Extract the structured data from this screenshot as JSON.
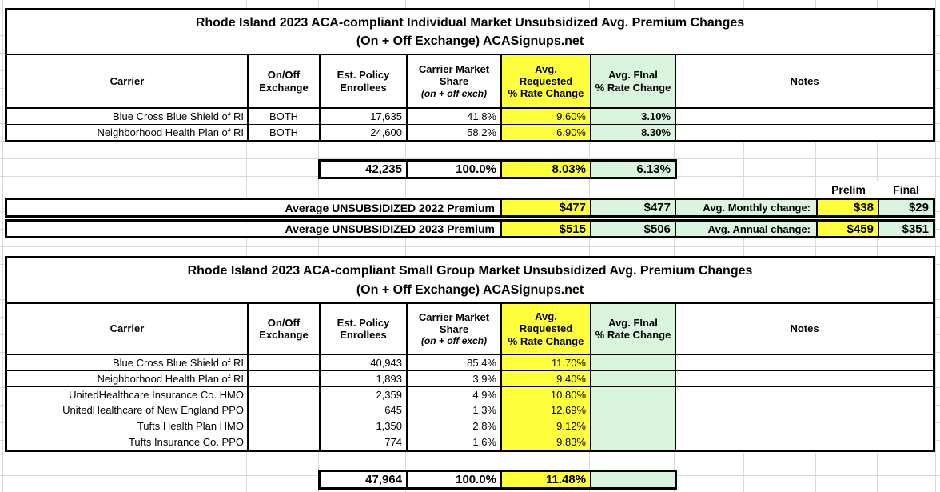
{
  "colors": {
    "highlight_yellow": "#ffff3d",
    "highlight_green": "#d9f5de",
    "gridline": "#d9d9d9",
    "border": "#000000"
  },
  "table1": {
    "title_line1": "Rhode Island 2023 ACA-compliant Individual Market Unsubsidized Avg. Premium Changes",
    "title_line2": "(On + Off Exchange) ACASignups.net",
    "headers": {
      "carrier": "Carrier",
      "exchange": "On/Off\nExchange",
      "enrollees": "Est. Policy\nEnrollees",
      "share": "Carrier Market\nShare",
      "share_sub": "(on + off exch)",
      "requested": "Avg.\nRequested\n% Rate Change",
      "final": "Avg. FInal\n% Rate Change",
      "notes": "Notes"
    },
    "rows": [
      {
        "carrier": "Blue Cross Blue Shield of RI",
        "exchange": "BOTH",
        "enrollees": "17,635",
        "share": "41.8%",
        "requested": "9.60%",
        "final": "3.10%",
        "notes": ""
      },
      {
        "carrier": "Neighborhood Health Plan of RI",
        "exchange": "BOTH",
        "enrollees": "24,600",
        "share": "58.2%",
        "requested": "6.90%",
        "final": "8.30%",
        "notes": ""
      }
    ],
    "total": {
      "enrollees": "42,235",
      "share": "100.0%",
      "requested": "8.03%",
      "final": "6.13%"
    }
  },
  "summary": {
    "col_headers": {
      "prelim": "Prelim",
      "final": "Final"
    },
    "rows": [
      {
        "label": "Average UNSUBSIDIZED 2022 Premium",
        "requested": "$477",
        "final": "$477",
        "change_label": "Avg. Monthly change:",
        "prelim_value": "$38",
        "final_value": "$29"
      },
      {
        "label": "Average UNSUBSIDIZED 2023 Premium",
        "requested": "$515",
        "final": "$506",
        "change_label": "Avg. Annual change:",
        "prelim_value": "$459",
        "final_value": "$351"
      }
    ]
  },
  "table2": {
    "title_line1": "Rhode Island 2023 ACA-compliant Small Group Market Unsubsidized Avg. Premium Changes",
    "title_line2": "(On + Off Exchange) ACASignups.net",
    "headers": {
      "carrier": "Carrier",
      "exchange": "On/Off\nExchange",
      "enrollees": "Est. Policy\nEnrollees",
      "share": "Carrier Market\nShare",
      "share_sub": "(on + off exch)",
      "requested": "Avg.\nRequested\n% Rate Change",
      "final": "Avg. FInal\n% Rate Change",
      "notes": "Notes"
    },
    "rows": [
      {
        "carrier": "Blue Cross Blue Shield of RI",
        "exchange": "",
        "enrollees": "40,943",
        "share": "85.4%",
        "requested": "11.70%",
        "final": "",
        "notes": ""
      },
      {
        "carrier": "Neighborhood Health Plan of RI",
        "exchange": "",
        "enrollees": "1,893",
        "share": "3.9%",
        "requested": "9.40%",
        "final": "",
        "notes": ""
      },
      {
        "carrier": "UnitedHealthcare Insurance Co. HMO",
        "exchange": "",
        "enrollees": "2,359",
        "share": "4.9%",
        "requested": "10.80%",
        "final": "",
        "notes": ""
      },
      {
        "carrier": "UnitedHealthcare of New England PPO",
        "exchange": "",
        "enrollees": "645",
        "share": "1.3%",
        "requested": "12.69%",
        "final": "",
        "notes": ""
      },
      {
        "carrier": "Tufts Health Plan HMO",
        "exchange": "",
        "enrollees": "1,350",
        "share": "2.8%",
        "requested": "9.12%",
        "final": "",
        "notes": ""
      },
      {
        "carrier": "Tufts Insurance Co. PPO",
        "exchange": "",
        "enrollees": "774",
        "share": "1.6%",
        "requested": "9.83%",
        "final": "",
        "notes": ""
      }
    ],
    "total": {
      "enrollees": "47,964",
      "share": "100.0%",
      "requested": "11.48%",
      "final": ""
    }
  }
}
